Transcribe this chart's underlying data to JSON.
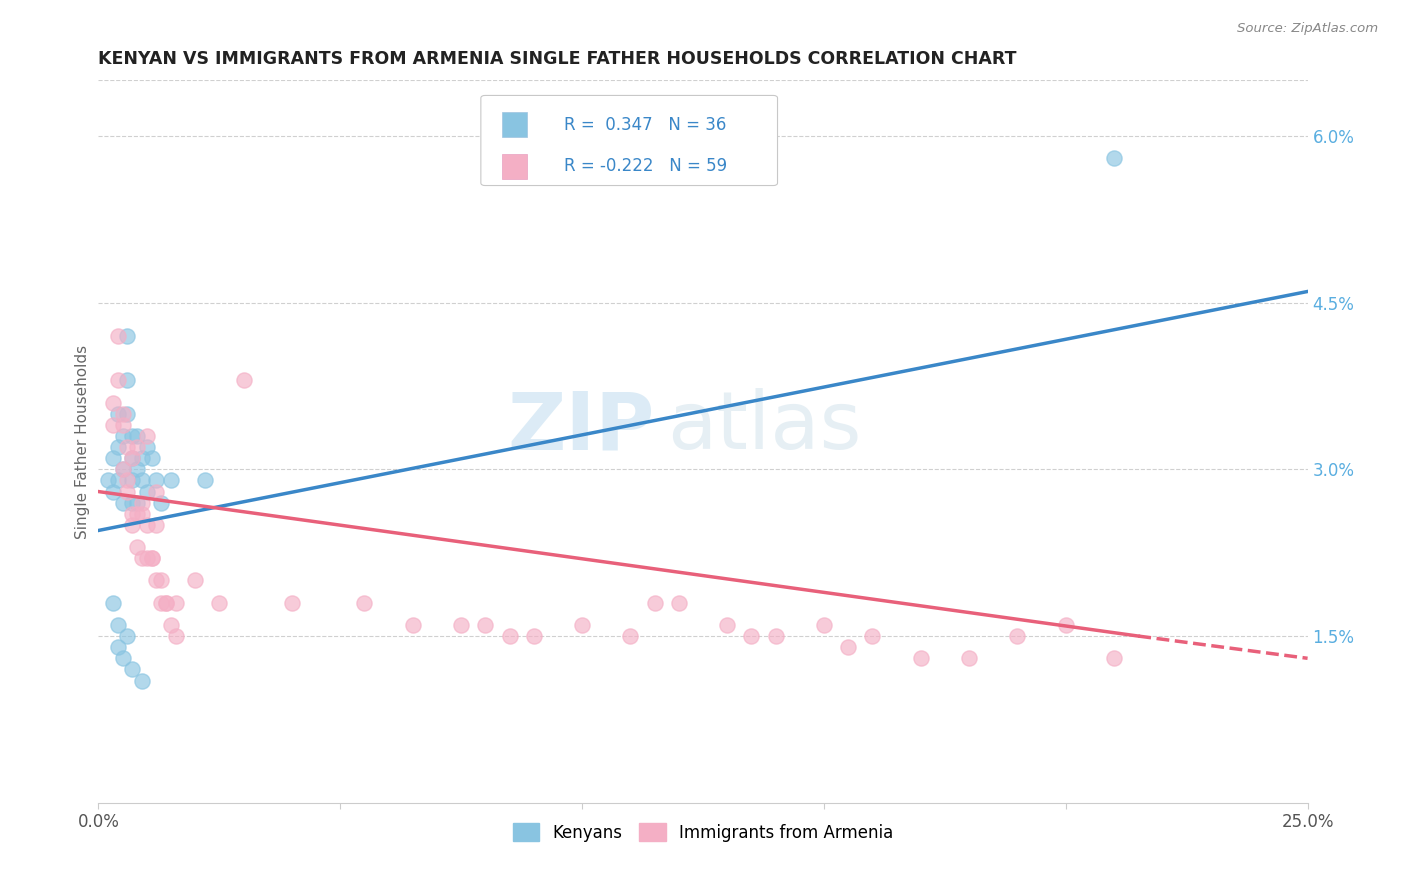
{
  "title": "KENYAN VS IMMIGRANTS FROM ARMENIA SINGLE FATHER HOUSEHOLDS CORRELATION CHART",
  "source": "Source: ZipAtlas.com",
  "ylabel": "Single Father Households",
  "xlim": [
    0.0,
    0.25
  ],
  "ylim": [
    0.0,
    0.065
  ],
  "yticks": [
    0.015,
    0.03,
    0.045,
    0.06
  ],
  "ytick_labels": [
    "1.5%",
    "3.0%",
    "4.5%",
    "6.0%"
  ],
  "xticks": [
    0.0,
    0.05,
    0.1,
    0.15,
    0.2,
    0.25
  ],
  "xtick_labels": [
    "0.0%",
    "",
    "",
    "",
    "",
    "25.0%"
  ],
  "r_kenya": 0.347,
  "n_kenya": 36,
  "r_armenia": -0.222,
  "n_armenia": 59,
  "kenya_color": "#89c4e1",
  "armenia_color": "#f4afc5",
  "kenya_line_color": "#3a87c8",
  "armenia_line_color": "#e8607a",
  "background_color": "#ffffff",
  "watermark_zip": "ZIP",
  "watermark_atlas": "atlas",
  "kenya_line": [
    [
      0.0,
      0.0245
    ],
    [
      0.25,
      0.046
    ]
  ],
  "armenia_line_solid": [
    [
      0.0,
      0.028
    ],
    [
      0.215,
      0.015
    ]
  ],
  "armenia_line_dash": [
    [
      0.215,
      0.015
    ],
    [
      0.25,
      0.013
    ]
  ],
  "kenya_scatter": [
    [
      0.002,
      0.029
    ],
    [
      0.003,
      0.028
    ],
    [
      0.003,
      0.031
    ],
    [
      0.004,
      0.032
    ],
    [
      0.004,
      0.035
    ],
    [
      0.004,
      0.029
    ],
    [
      0.005,
      0.033
    ],
    [
      0.005,
      0.03
    ],
    [
      0.005,
      0.027
    ],
    [
      0.006,
      0.042
    ],
    [
      0.006,
      0.038
    ],
    [
      0.006,
      0.035
    ],
    [
      0.007,
      0.033
    ],
    [
      0.007,
      0.031
    ],
    [
      0.007,
      0.029
    ],
    [
      0.007,
      0.027
    ],
    [
      0.008,
      0.033
    ],
    [
      0.008,
      0.03
    ],
    [
      0.008,
      0.027
    ],
    [
      0.009,
      0.031
    ],
    [
      0.009,
      0.029
    ],
    [
      0.01,
      0.032
    ],
    [
      0.01,
      0.028
    ],
    [
      0.011,
      0.031
    ],
    [
      0.012,
      0.029
    ],
    [
      0.013,
      0.027
    ],
    [
      0.003,
      0.018
    ],
    [
      0.004,
      0.016
    ],
    [
      0.004,
      0.014
    ],
    [
      0.005,
      0.013
    ],
    [
      0.006,
      0.015
    ],
    [
      0.007,
      0.012
    ],
    [
      0.009,
      0.011
    ],
    [
      0.015,
      0.029
    ],
    [
      0.022,
      0.029
    ],
    [
      0.21,
      0.058
    ]
  ],
  "armenia_scatter": [
    [
      0.003,
      0.034
    ],
    [
      0.003,
      0.036
    ],
    [
      0.004,
      0.042
    ],
    [
      0.004,
      0.038
    ],
    [
      0.005,
      0.035
    ],
    [
      0.005,
      0.03
    ],
    [
      0.005,
      0.034
    ],
    [
      0.006,
      0.028
    ],
    [
      0.006,
      0.032
    ],
    [
      0.006,
      0.029
    ],
    [
      0.007,
      0.025
    ],
    [
      0.007,
      0.031
    ],
    [
      0.007,
      0.026
    ],
    [
      0.008,
      0.032
    ],
    [
      0.008,
      0.026
    ],
    [
      0.008,
      0.023
    ],
    [
      0.009,
      0.026
    ],
    [
      0.009,
      0.022
    ],
    [
      0.009,
      0.027
    ],
    [
      0.01,
      0.025
    ],
    [
      0.01,
      0.022
    ],
    [
      0.01,
      0.033
    ],
    [
      0.011,
      0.022
    ],
    [
      0.011,
      0.022
    ],
    [
      0.012,
      0.025
    ],
    [
      0.012,
      0.02
    ],
    [
      0.012,
      0.028
    ],
    [
      0.013,
      0.02
    ],
    [
      0.013,
      0.018
    ],
    [
      0.014,
      0.018
    ],
    [
      0.014,
      0.018
    ],
    [
      0.015,
      0.016
    ],
    [
      0.016,
      0.018
    ],
    [
      0.016,
      0.015
    ],
    [
      0.02,
      0.02
    ],
    [
      0.025,
      0.018
    ],
    [
      0.03,
      0.038
    ],
    [
      0.04,
      0.018
    ],
    [
      0.055,
      0.018
    ],
    [
      0.065,
      0.016
    ],
    [
      0.075,
      0.016
    ],
    [
      0.08,
      0.016
    ],
    [
      0.085,
      0.015
    ],
    [
      0.09,
      0.015
    ],
    [
      0.1,
      0.016
    ],
    [
      0.11,
      0.015
    ],
    [
      0.115,
      0.018
    ],
    [
      0.12,
      0.018
    ],
    [
      0.13,
      0.016
    ],
    [
      0.135,
      0.015
    ],
    [
      0.14,
      0.015
    ],
    [
      0.15,
      0.016
    ],
    [
      0.155,
      0.014
    ],
    [
      0.16,
      0.015
    ],
    [
      0.17,
      0.013
    ],
    [
      0.18,
      0.013
    ],
    [
      0.19,
      0.015
    ],
    [
      0.2,
      0.016
    ],
    [
      0.21,
      0.013
    ]
  ]
}
